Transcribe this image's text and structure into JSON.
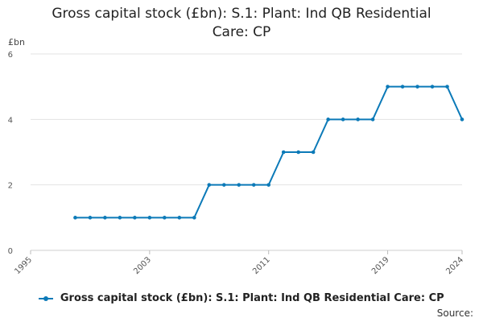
{
  "chart_data": {
    "type": "line",
    "title_lines": [
      "Gross capital stock (£bn): S.1: Plant: Ind QB Residential",
      "Care: CP"
    ],
    "ylabel": "£bn",
    "xlabel": "",
    "ylim": [
      0,
      6
    ],
    "yticks": [
      "0",
      "2",
      "4",
      "6"
    ],
    "xlim": [
      1995,
      2024
    ],
    "xticks": [
      "1995",
      "2003",
      "2011",
      "2019",
      "2024"
    ],
    "grid": true,
    "legend_position": "bottom",
    "series": [
      {
        "name": "Gross capital stock (£bn): S.1: Plant: Ind QB Residential Care: CP",
        "color": "#0c7ab8",
        "x": [
          1998,
          1999,
          2000,
          2001,
          2002,
          2003,
          2004,
          2005,
          2006,
          2007,
          2008,
          2009,
          2010,
          2011,
          2012,
          2013,
          2014,
          2015,
          2016,
          2017,
          2018,
          2019,
          2020,
          2021,
          2022,
          2023,
          2024
        ],
        "y": [
          1,
          1,
          1,
          1,
          1,
          1,
          1,
          1,
          1,
          2,
          2,
          2,
          2,
          2,
          3,
          3,
          3,
          4,
          4,
          4,
          4,
          5,
          5,
          5,
          5,
          5,
          4
        ]
      }
    ]
  },
  "source_label": "Source:"
}
